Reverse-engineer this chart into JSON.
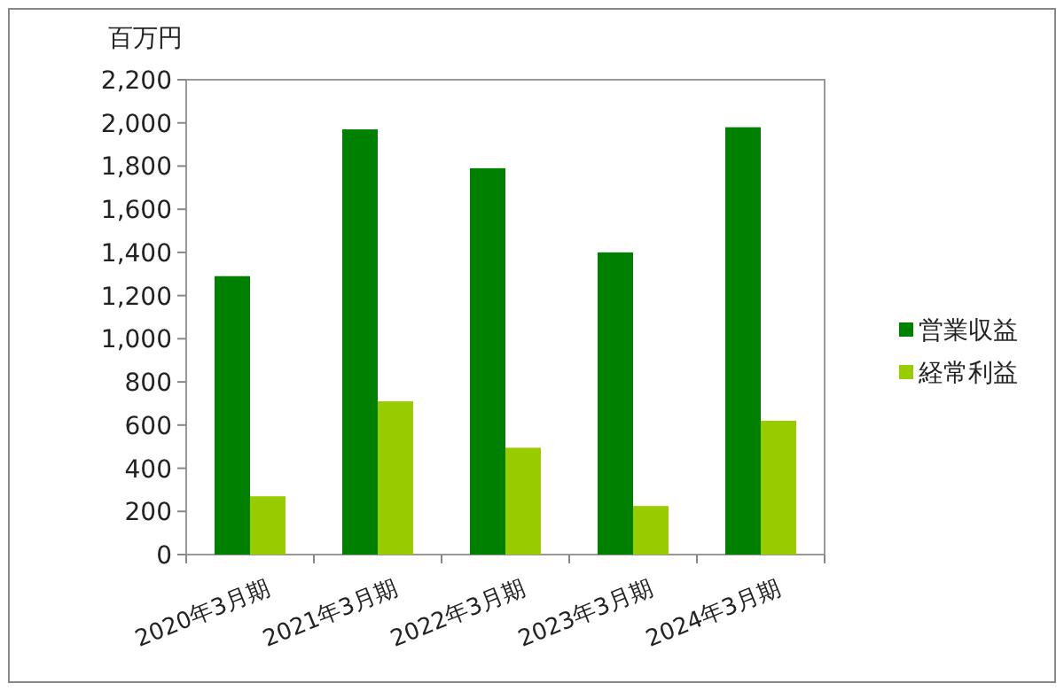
{
  "chart_data": {
    "type": "bar",
    "ylabel": "百万円",
    "categories": [
      "2020年3月期",
      "2021年3月期",
      "2022年3月期",
      "2023年3月期",
      "2024年3月期"
    ],
    "series": [
      {
        "name": "営業収益",
        "color": "#008000",
        "values": [
          1290,
          1970,
          1790,
          1400,
          1980
        ]
      },
      {
        "name": "経常利益",
        "color": "#99cc00",
        "values": [
          270,
          710,
          495,
          225,
          620
        ]
      }
    ],
    "ylim": [
      0,
      2200
    ],
    "yticks": [
      {
        "value": 0,
        "label": "0"
      },
      {
        "value": 200,
        "label": "200"
      },
      {
        "value": 400,
        "label": "400"
      },
      {
        "value": 600,
        "label": "600"
      },
      {
        "value": 800,
        "label": "800"
      },
      {
        "value": 1000,
        "label": "1,000"
      },
      {
        "value": 1200,
        "label": "1,200"
      },
      {
        "value": 1400,
        "label": "1,400"
      },
      {
        "value": 1600,
        "label": "1,600"
      },
      {
        "value": 1800,
        "label": "1,800"
      },
      {
        "value": 2000,
        "label": "2,000"
      },
      {
        "value": 2200,
        "label": "2,200"
      }
    ],
    "grid": false,
    "legend": "right"
  }
}
